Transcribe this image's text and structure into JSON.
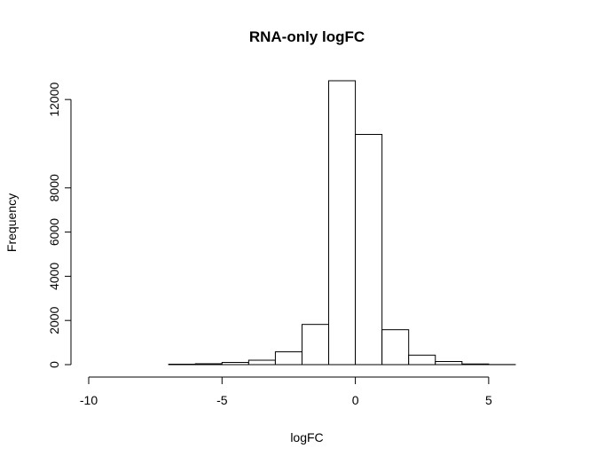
{
  "chart_data": {
    "type": "bar",
    "title": "RNA-only logFC",
    "xlabel": "logFC",
    "ylabel": "Frequency",
    "bins": [
      {
        "from": -10,
        "to": -9,
        "count": 0
      },
      {
        "from": -9,
        "to": -8,
        "count": 0
      },
      {
        "from": -8,
        "to": -7,
        "count": 0
      },
      {
        "from": -7,
        "to": -6,
        "count": 20
      },
      {
        "from": -6,
        "to": -5,
        "count": 40
      },
      {
        "from": -5,
        "to": -4,
        "count": 100
      },
      {
        "from": -4,
        "to": -3,
        "count": 200
      },
      {
        "from": -3,
        "to": -2,
        "count": 580
      },
      {
        "from": -2,
        "to": -1,
        "count": 1820
      },
      {
        "from": -1,
        "to": 0,
        "count": 12850
      },
      {
        "from": 0,
        "to": 1,
        "count": 10420
      },
      {
        "from": 1,
        "to": 2,
        "count": 1580
      },
      {
        "from": 2,
        "to": 3,
        "count": 430
      },
      {
        "from": 3,
        "to": 4,
        "count": 140
      },
      {
        "from": 4,
        "to": 5,
        "count": 30
      },
      {
        "from": 5,
        "to": 6,
        "count": 5
      },
      {
        "from": 6,
        "to": 7,
        "count": 0
      }
    ],
    "xticks": [
      -10,
      -5,
      0,
      5
    ],
    "xtick_labels": [
      "-10",
      "-5",
      "0",
      "5"
    ],
    "yticks": [
      0,
      2000,
      4000,
      6000,
      8000,
      12000
    ],
    "ytick_labels": [
      "0",
      "2000",
      "4000",
      "6000",
      "8000",
      "12000"
    ],
    "xlim": [
      -10,
      7
    ],
    "ylim": [
      0,
      13000
    ],
    "grid": false,
    "colors": {
      "bar_fill": "#ffffff",
      "bar_stroke": "#000000"
    }
  }
}
